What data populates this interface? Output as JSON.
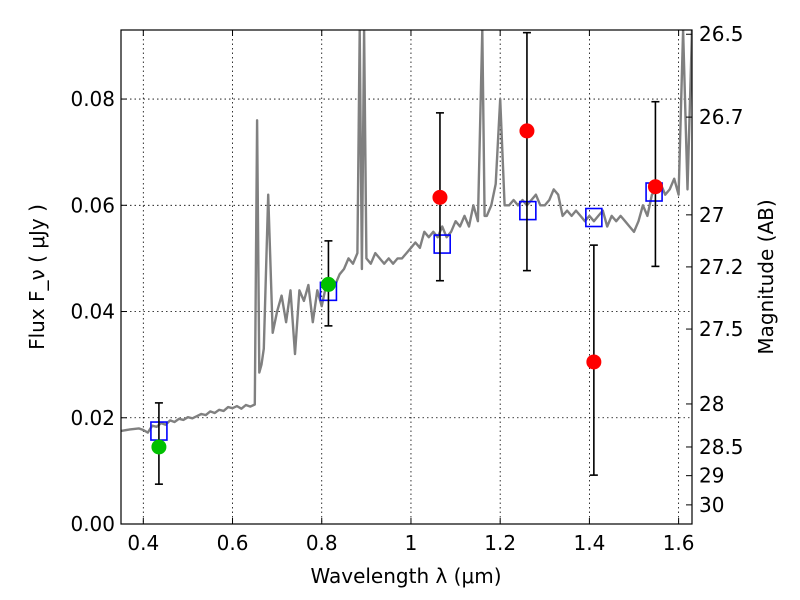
{
  "chart_data": {
    "type": "line",
    "xlabel": "Wavelength  λ (μm)",
    "ylabel": "Flux  F_ν  ( μJy )",
    "y2label": "Magnitude (AB)",
    "xlim": [
      0.35,
      1.63
    ],
    "ylim": [
      0.0,
      0.093
    ],
    "x_ticks": [
      0.4,
      0.6,
      0.8,
      1.0,
      1.2,
      1.4,
      1.6
    ],
    "x_tick_labels": [
      "0.4",
      "0.6",
      "0.8",
      "1",
      "1.2",
      "1.4",
      "1.6"
    ],
    "y_ticks": [
      0.0,
      0.02,
      0.04,
      0.06,
      0.08
    ],
    "y_tick_labels": [
      "0.00",
      "0.02",
      "0.04",
      "0.06",
      "0.08"
    ],
    "y2_ticks": [
      {
        "label": "26.5",
        "flux": 0.0922
      },
      {
        "label": "26.7",
        "flux": 0.0766
      },
      {
        "label": "27",
        "flux": 0.0582
      },
      {
        "label": "27.2",
        "flux": 0.0484
      },
      {
        "label": "27.5",
        "flux": 0.0367
      },
      {
        "label": "28",
        "flux": 0.0226
      },
      {
        "label": "28.5",
        "flux": 0.0145
      },
      {
        "label": "29",
        "flux": 0.0091
      },
      {
        "label": "30",
        "flux": 0.0036
      }
    ],
    "grid": true,
    "colors": {
      "spectrum": "#808080",
      "model_points": "#0000ff",
      "green_points": "#00c000",
      "red_points": "#ff0000",
      "error_bars": "#000000"
    },
    "series": [
      {
        "kind": "spectrum",
        "x": [
          0.35,
          0.37,
          0.39,
          0.4,
          0.41,
          0.42,
          0.43,
          0.44,
          0.45,
          0.46,
          0.47,
          0.48,
          0.49,
          0.5,
          0.51,
          0.52,
          0.53,
          0.54,
          0.55,
          0.56,
          0.57,
          0.58,
          0.59,
          0.6,
          0.61,
          0.62,
          0.63,
          0.64,
          0.65,
          0.655,
          0.66,
          0.665,
          0.67,
          0.68,
          0.69,
          0.7,
          0.71,
          0.72,
          0.73,
          0.74,
          0.75,
          0.76,
          0.77,
          0.78,
          0.79,
          0.8,
          0.81,
          0.82,
          0.83,
          0.84,
          0.85,
          0.86,
          0.87,
          0.88,
          0.885,
          0.89,
          0.895,
          0.9,
          0.91,
          0.92,
          0.93,
          0.94,
          0.95,
          0.96,
          0.97,
          0.98,
          0.99,
          1.0,
          1.01,
          1.02,
          1.03,
          1.04,
          1.05,
          1.06,
          1.07,
          1.08,
          1.09,
          1.1,
          1.11,
          1.12,
          1.13,
          1.14,
          1.15,
          1.16,
          1.165,
          1.17,
          1.18,
          1.19,
          1.2,
          1.21,
          1.22,
          1.23,
          1.24,
          1.25,
          1.26,
          1.27,
          1.28,
          1.29,
          1.3,
          1.31,
          1.32,
          1.33,
          1.34,
          1.35,
          1.36,
          1.37,
          1.38,
          1.39,
          1.4,
          1.41,
          1.42,
          1.43,
          1.44,
          1.45,
          1.46,
          1.47,
          1.48,
          1.49,
          1.5,
          1.51,
          1.52,
          1.53,
          1.54,
          1.55,
          1.56,
          1.57,
          1.58,
          1.59,
          1.6,
          1.61,
          1.62,
          1.63
        ],
        "y": [
          0.0175,
          0.0178,
          0.018,
          0.0177,
          0.0172,
          0.0185,
          0.0183,
          0.019,
          0.0187,
          0.0195,
          0.0192,
          0.0198,
          0.0196,
          0.0201,
          0.0199,
          0.0203,
          0.0207,
          0.0205,
          0.0212,
          0.0209,
          0.0215,
          0.0213,
          0.022,
          0.0218,
          0.0222,
          0.0217,
          0.0224,
          0.0221,
          0.0225,
          0.076,
          0.0285,
          0.03,
          0.033,
          0.062,
          0.036,
          0.04,
          0.043,
          0.038,
          0.044,
          0.032,
          0.044,
          0.042,
          0.045,
          0.038,
          0.044,
          0.041,
          0.045,
          0.046,
          0.045,
          0.047,
          0.048,
          0.05,
          0.049,
          0.051,
          0.093,
          0.048,
          0.093,
          0.05,
          0.049,
          0.051,
          0.05,
          0.049,
          0.05,
          0.049,
          0.05,
          0.05,
          0.051,
          0.052,
          0.053,
          0.052,
          0.055,
          0.054,
          0.055,
          0.054,
          0.056,
          0.054,
          0.055,
          0.057,
          0.056,
          0.058,
          0.056,
          0.06,
          0.057,
          0.093,
          0.058,
          0.058,
          0.06,
          0.064,
          0.08,
          0.06,
          0.06,
          0.061,
          0.06,
          0.061,
          0.06,
          0.061,
          0.062,
          0.06,
          0.06,
          0.061,
          0.063,
          0.062,
          0.058,
          0.059,
          0.058,
          0.059,
          0.058,
          0.057,
          0.058,
          0.057,
          0.058,
          0.059,
          0.056,
          0.058,
          0.057,
          0.058,
          0.057,
          0.056,
          0.055,
          0.057,
          0.06,
          0.058,
          0.062,
          0.063,
          0.064,
          0.062,
          0.063,
          0.065,
          0.062,
          0.093,
          0.063,
          0.093
        ]
      },
      {
        "kind": "model-boxes",
        "x": [
          0.435,
          0.815,
          1.07,
          1.262,
          1.41,
          1.545
        ],
        "y": [
          0.0175,
          0.0438,
          0.0527,
          0.059,
          0.0577,
          0.0625
        ]
      },
      {
        "kind": "green-detections",
        "x": [
          0.435,
          0.815
        ],
        "y": [
          0.0145,
          0.0451
        ],
        "err_low": [
          0.0075,
          0.0373
        ],
        "err_high": [
          0.0228,
          0.0533
        ]
      },
      {
        "kind": "red-detections",
        "x": [
          1.065,
          1.26,
          1.41,
          1.548
        ],
        "y": [
          0.0615,
          0.074,
          0.0305,
          0.0635
        ],
        "err_low": [
          0.0458,
          0.0477,
          0.0092,
          0.0485
        ],
        "err_high": [
          0.0774,
          0.0925,
          0.0525,
          0.0795
        ]
      }
    ]
  }
}
